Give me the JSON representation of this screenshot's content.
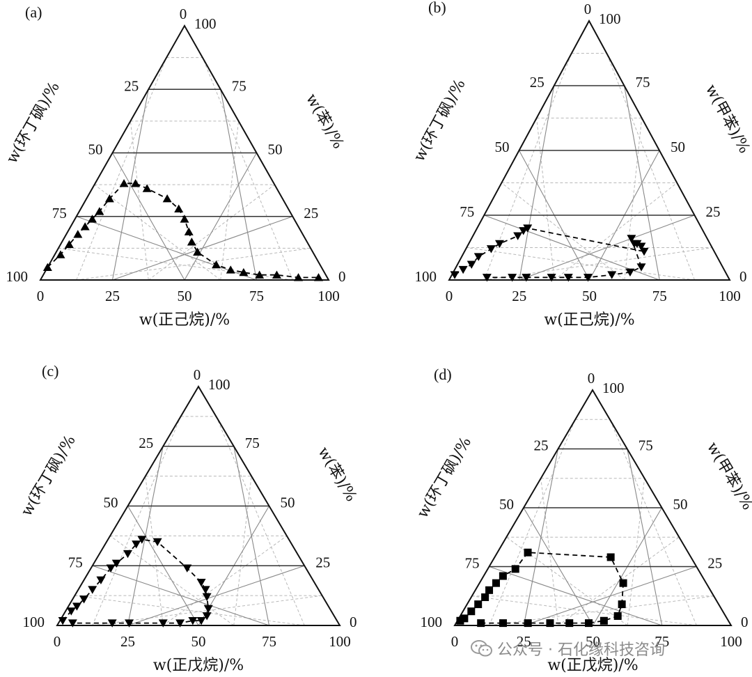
{
  "watermark": {
    "text": "公众号 · 石化缘科技咨询",
    "icon": "wechat-icon"
  },
  "chart_data": [
    {
      "type": "scatter",
      "panel_label": "(a)",
      "axes": {
        "bottom": {
          "label": "w(正己烷)/%",
          "ticks": [
            "0",
            "25",
            "50",
            "75",
            "100"
          ]
        },
        "left": {
          "label": "w(环丁砜)/%",
          "ticks": [
            "0",
            "25",
            "50",
            "75",
            "100"
          ]
        },
        "right": {
          "label": "w(苯)/%",
          "ticks": [
            "100",
            "75",
            "50",
            "25",
            "0"
          ]
        }
      },
      "marker": "triangle-up",
      "grid": true,
      "series": [
        {
          "points": [
            {
              "a": 95,
              "b": 0,
              "c": 5
            },
            {
              "a": 88,
              "b": 2,
              "c": 10
            },
            {
              "a": 83,
              "b": 3,
              "c": 14
            },
            {
              "a": 78,
              "b": 4,
              "c": 18
            },
            {
              "a": 74,
              "b": 5,
              "c": 21
            },
            {
              "a": 70,
              "b": 6,
              "c": 24
            },
            {
              "a": 66,
              "b": 7,
              "c": 27
            },
            {
              "a": 60,
              "b": 8,
              "c": 32
            },
            {
              "a": 52,
              "b": 10,
              "c": 38
            },
            {
              "a": 48,
              "b": 14,
              "c": 38
            },
            {
              "a": 45,
              "b": 19,
              "c": 36
            },
            {
              "a": 40,
              "b": 28,
              "c": 32
            },
            {
              "a": 38,
              "b": 34,
              "c": 28
            },
            {
              "a": 38,
              "b": 38,
              "c": 24
            },
            {
              "a": 39,
              "b": 42,
              "c": 19
            },
            {
              "a": 40,
              "b": 45,
              "c": 15
            },
            {
              "a": 40,
              "b": 49,
              "c": 11
            },
            {
              "a": 36,
              "b": 58,
              "c": 6
            },
            {
              "a": 32,
              "b": 64,
              "c": 4
            },
            {
              "a": 28,
              "b": 69,
              "c": 3
            },
            {
              "a": 23,
              "b": 75,
              "c": 2
            },
            {
              "a": 17,
              "b": 81,
              "c": 2
            },
            {
              "a": 10,
              "b": 89,
              "c": 1
            },
            {
              "a": 3,
              "b": 96,
              "c": 1
            }
          ]
        }
      ]
    },
    {
      "type": "scatter",
      "panel_label": "(b)",
      "axes": {
        "bottom": {
          "label": "w(正己烷)/%",
          "ticks": [
            "0",
            "25",
            "50",
            "75",
            "100"
          ]
        },
        "left": {
          "label": "w(环丁砜)/%",
          "ticks": [
            "0",
            "25",
            "50",
            "75",
            "100"
          ]
        },
        "right": {
          "label": "w(甲苯)/%",
          "ticks": [
            "100",
            "75",
            "50",
            "25",
            "0"
          ]
        }
      },
      "marker": "triangle-down",
      "grid": true,
      "series": [
        {
          "points": [
            {
              "a": 97,
              "b": 1,
              "c": 2
            },
            {
              "a": 93,
              "b": 3,
              "c": 4
            },
            {
              "a": 89,
              "b": 5,
              "c": 6
            },
            {
              "a": 85,
              "b": 6,
              "c": 9
            },
            {
              "a": 79,
              "b": 9,
              "c": 12
            },
            {
              "a": 75,
              "b": 11,
              "c": 14
            },
            {
              "a": 67,
              "b": 16,
              "c": 17
            },
            {
              "a": 64,
              "b": 17,
              "c": 19
            },
            {
              "a": 62,
              "b": 18,
              "c": 20
            },
            {
              "a": 25,
              "b": 64,
              "c": 11
            },
            {
              "a": 25,
              "b": 62,
              "c": 13
            },
            {
              "a": 26,
              "b": 60,
              "c": 14
            },
            {
              "a": 27,
              "b": 59,
              "c": 14
            },
            {
              "a": 27,
              "b": 57,
              "c": 16
            },
            {
              "a": 29,
              "b": 66,
              "c": 5
            },
            {
              "a": 34,
              "b": 63,
              "c": 3
            },
            {
              "a": 41,
              "b": 57,
              "c": 2
            },
            {
              "a": 50,
              "b": 49,
              "c": 1
            },
            {
              "a": 57,
              "b": 42,
              "c": 1
            },
            {
              "a": 63,
              "b": 36,
              "c": 1
            },
            {
              "a": 72,
              "b": 27,
              "c": 1
            },
            {
              "a": 77,
              "b": 22,
              "c": 1
            },
            {
              "a": 86,
              "b": 13,
              "c": 1
            }
          ]
        }
      ]
    },
    {
      "type": "scatter",
      "panel_label": "(c)",
      "axes": {
        "bottom": {
          "label": "w(正戊烷)/%",
          "ticks": [
            "0",
            "25",
            "50",
            "75",
            "100"
          ]
        },
        "left": {
          "label": "w(环丁砜)/%",
          "ticks": [
            "0",
            "25",
            "50",
            "75",
            "100"
          ]
        },
        "right": {
          "label": "w(苯)/%",
          "ticks": [
            "100",
            "75",
            "50",
            "25",
            "0"
          ]
        }
      },
      "marker": "triangle-down",
      "grid": true,
      "series": [
        {
          "points": [
            {
              "a": 97,
              "b": 1,
              "c": 2
            },
            {
              "a": 92,
              "b": 2,
              "c": 6
            },
            {
              "a": 89,
              "b": 3,
              "c": 8
            },
            {
              "a": 85,
              "b": 4,
              "c": 11
            },
            {
              "a": 80,
              "b": 5,
              "c": 15
            },
            {
              "a": 75,
              "b": 6,
              "c": 19
            },
            {
              "a": 69,
              "b": 7,
              "c": 24
            },
            {
              "a": 66,
              "b": 8,
              "c": 26
            },
            {
              "a": 60,
              "b": 10,
              "c": 30
            },
            {
              "a": 55,
              "b": 11,
              "c": 34
            },
            {
              "a": 52,
              "b": 12,
              "c": 36
            },
            {
              "a": 47,
              "b": 18,
              "c": 35
            },
            {
              "a": 42,
              "b": 34,
              "c": 24
            },
            {
              "a": 40,
              "b": 42,
              "c": 18
            },
            {
              "a": 40,
              "b": 45,
              "c": 15
            },
            {
              "a": 41,
              "b": 47,
              "c": 12
            },
            {
              "a": 43,
              "b": 50,
              "c": 7
            },
            {
              "a": 45,
              "b": 51,
              "c": 4
            },
            {
              "a": 48,
              "b": 50,
              "c": 2
            },
            {
              "a": 51,
              "b": 47,
              "c": 2
            },
            {
              "a": 56,
              "b": 43,
              "c": 1
            },
            {
              "a": 62,
              "b": 37,
              "c": 1
            },
            {
              "a": 74,
              "b": 25,
              "c": 1
            },
            {
              "a": 80,
              "b": 19,
              "c": 1
            },
            {
              "a": 94,
              "b": 5,
              "c": 1
            }
          ]
        }
      ]
    },
    {
      "type": "scatter",
      "panel_label": "(d)",
      "axes": {
        "bottom": {
          "label": "w(正戊烷)/%",
          "ticks": [
            "0",
            "25",
            "50",
            "75",
            "100"
          ]
        },
        "left": {
          "label": "w(环丁砜)/%",
          "ticks": [
            "0",
            "25",
            "50",
            "75",
            "100"
          ]
        },
        "right": {
          "label": "w(甲苯)/%",
          "ticks": [
            "100",
            "75",
            "50",
            "25",
            "0"
          ]
        }
      },
      "marker": "square",
      "grid": true,
      "series": [
        {
          "points": [
            {
              "a": 97,
              "b": 1,
              "c": 2
            },
            {
              "a": 95,
              "b": 2,
              "c": 3
            },
            {
              "a": 91,
              "b": 3,
              "c": 6
            },
            {
              "a": 87,
              "b": 4,
              "c": 9
            },
            {
              "a": 83,
              "b": 5,
              "c": 12
            },
            {
              "a": 80,
              "b": 5,
              "c": 15
            },
            {
              "a": 76,
              "b": 6,
              "c": 18
            },
            {
              "a": 72,
              "b": 7,
              "c": 21
            },
            {
              "a": 66,
              "b": 10,
              "c": 24
            },
            {
              "a": 58,
              "b": 11,
              "c": 31
            },
            {
              "a": 29,
              "b": 42,
              "c": 29
            },
            {
              "a": 30,
              "b": 52,
              "c": 18
            },
            {
              "a": 35,
              "b": 56,
              "c": 9
            },
            {
              "a": 39,
              "b": 57,
              "c": 4
            },
            {
              "a": 45,
              "b": 53,
              "c": 2
            },
            {
              "a": 51,
              "b": 48,
              "c": 1
            },
            {
              "a": 58,
              "b": 41,
              "c": 1
            },
            {
              "a": 65,
              "b": 34,
              "c": 1
            },
            {
              "a": 73,
              "b": 26,
              "c": 1
            },
            {
              "a": 82,
              "b": 17,
              "c": 1
            },
            {
              "a": 90,
              "b": 9,
              "c": 1
            }
          ]
        }
      ]
    }
  ]
}
